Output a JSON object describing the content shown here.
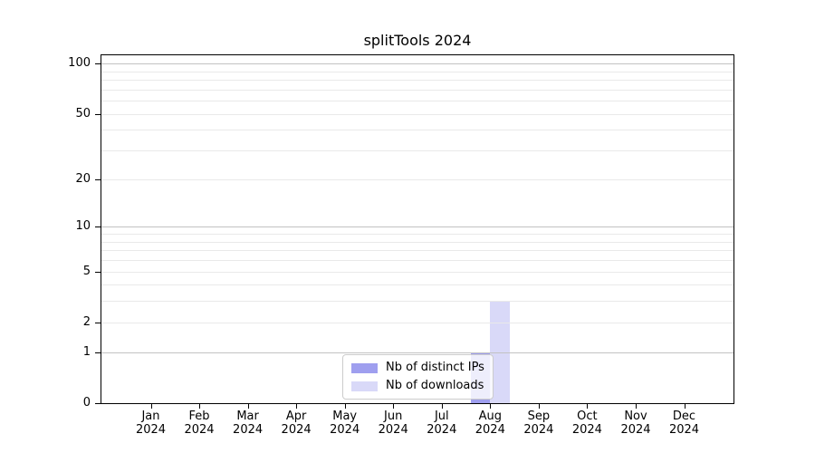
{
  "chart_data": {
    "type": "bar",
    "title": "splitTools 2024",
    "x_axis": {
      "categories": [
        "Jan",
        "Feb",
        "Mar",
        "Apr",
        "May",
        "Jun",
        "Jul",
        "Aug",
        "Sep",
        "Oct",
        "Nov",
        "Dec"
      ],
      "year_label": "2024"
    },
    "y_axis": {
      "scale": "log10(1+x)",
      "ylim": [
        0,
        114
      ],
      "tick_values": [
        0,
        1,
        2,
        5,
        10,
        20,
        50,
        100
      ],
      "major_gridlines": [
        1,
        10,
        100
      ],
      "minor_gridlines": [
        2,
        3,
        4,
        5,
        6,
        7,
        8,
        9,
        20,
        30,
        40,
        50,
        60,
        70,
        80,
        90
      ]
    },
    "series": [
      {
        "name": "Nb of distinct IPs",
        "color": "#9f9fef",
        "values": [
          0,
          0,
          0,
          0,
          0,
          0,
          0,
          1,
          0,
          0,
          0,
          0
        ]
      },
      {
        "name": "Nb of downloads",
        "color": "#d9d9f8",
        "values": [
          0,
          0,
          0,
          0,
          0,
          0,
          0,
          3,
          0,
          0,
          0,
          0
        ]
      }
    ],
    "legend": {
      "position": "lower center",
      "entries": [
        "Nb of distinct IPs",
        "Nb of downloads"
      ]
    },
    "grid": "horizontal only"
  },
  "colors": {
    "background": "#ffffff",
    "spine": "#000000",
    "major_grid": "#c2c2c2",
    "minor_grid": "#e9e9e9",
    "legend_border": "#cccccc",
    "text": "#000000"
  }
}
